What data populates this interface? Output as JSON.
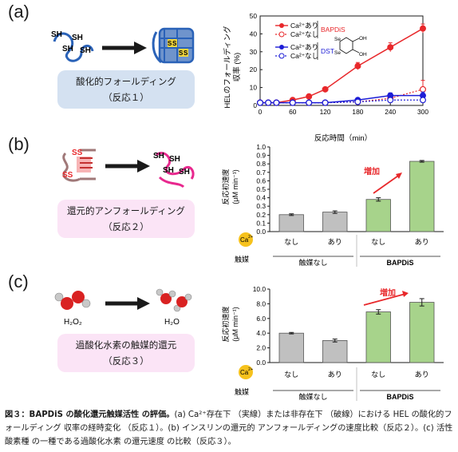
{
  "panels": {
    "a": {
      "label": "(a)",
      "reaction_title": "酸化的フォールディング",
      "reaction_sub": "（反応１）",
      "protein_thiols": [
        "SH",
        "SH",
        "SH",
        "SH"
      ],
      "protein_disulfides": [
        "S",
        "S",
        "S",
        "S"
      ],
      "ylabel_line1": "HELのフォールディング",
      "ylabel_line2": "収率 (%)",
      "xlabel": "反応時間（min）",
      "legend": {
        "series": [
          "Ca²⁺あり",
          "Ca²⁺なし",
          "Ca²⁺あり",
          "Ca²⁺なし"
        ],
        "groups": [
          "BAPDiS",
          "DST"
        ],
        "dst_struct_labels": [
          "Se",
          "Se",
          "OH",
          "OH"
        ]
      }
    },
    "b": {
      "label": "(b)",
      "reaction_title": "還元的アンフォールディング",
      "reaction_sub": "（反応２）",
      "protein_disulfides": [
        "SS",
        "SS"
      ],
      "protein_thiols": [
        "SH",
        "SH",
        "SH",
        "SH"
      ],
      "ylabel_line1": "反応初速度",
      "ylabel_line2": "(μM min⁻¹)",
      "annotation": "増加",
      "ca_label": "Ca",
      "ca_sup": "2+",
      "catalyst_label": "触媒",
      "ca_values": [
        "なし",
        "あり",
        "なし",
        "あり"
      ],
      "catalyst_groups": [
        "触媒なし",
        "BAPDiS"
      ]
    },
    "c": {
      "label": "(c)",
      "reactant": "H₂O₂",
      "product": "H₂O",
      "reaction_title": "過酸化水素の触媒的還元",
      "reaction_sub": "（反応３）",
      "ylabel_line1": "反応初速度",
      "ylabel_line2": "(μM min⁻¹)",
      "annotation": "増加",
      "ca_label": "Ca",
      "ca_sup": "2+",
      "catalyst_label": "触媒",
      "ca_values": [
        "なし",
        "あり",
        "なし",
        "あり"
      ],
      "catalyst_groups": [
        "触媒なし",
        "BAPDiS"
      ]
    }
  },
  "caption": {
    "lead": "図３：BAPDiS の酸化還元触媒活性 の評価。",
    "body": "(a) Ca²⁺存在下 （実線）または非存在下 （破線）における HEL の酸化的フォールディング 収率の経時変化 （反応１）。(b) インスリンの還元的 アンフォールディングの速度比較（反応２）。(c) 活性酸素種 の一種である過酸化水素 の還元速度 の比較（反応３）。"
  },
  "colors": {
    "bapdis": "#e8282b",
    "dst": "#1d1dd6",
    "bar_gray": "#c0c0c0",
    "bar_green": "#a7d38b",
    "box_blue": "#d4e1f1",
    "box_pink": "#fbe4f6",
    "ca_yellow": "#f6c21d",
    "arrow": "#e8282b"
  },
  "chart_data": [
    {
      "type": "line",
      "x": [
        0,
        15,
        30,
        60,
        90,
        120,
        180,
        240,
        300
      ],
      "xlim": [
        0,
        300
      ],
      "xticks": [
        0,
        60,
        120,
        180,
        240,
        300
      ],
      "ylim": [
        0,
        50
      ],
      "yticks": [
        0,
        10,
        20,
        30,
        40,
        50
      ],
      "xlabel": "反応時間（min）",
      "ylabel": "HELのフォールディング収率 (%)",
      "series": [
        {
          "name": "BAPDiS Ca²⁺あり",
          "style": "solid",
          "marker": "filled",
          "color": "#e8282b",
          "values": [
            1.5,
            1.5,
            1.5,
            3,
            5,
            9,
            22,
            32.5,
            43
          ],
          "errors": [
            0.5,
            0.5,
            0.5,
            0.6,
            0.8,
            1.0,
            2.0,
            2.5,
            2.5
          ]
        },
        {
          "name": "BAPDiS Ca²⁺なし",
          "style": "dashed",
          "marker": "open",
          "color": "#e8282b",
          "values": [
            1.5,
            1.5,
            1.5,
            1.5,
            1.5,
            1.5,
            2,
            4,
            9
          ],
          "errors": [
            0.4,
            0.4,
            0.4,
            0.4,
            0.4,
            0.5,
            1.0,
            2.0,
            5.0
          ]
        },
        {
          "name": "DST Ca²⁺あり",
          "style": "solid",
          "marker": "filled",
          "color": "#1d1dd6",
          "values": [
            1.5,
            1.5,
            1.5,
            1.5,
            1.5,
            1.5,
            3,
            5.5,
            5.5
          ],
          "errors": [
            0.4,
            0.4,
            0.4,
            0.4,
            0.4,
            0.5,
            1.0,
            1.5,
            2.0
          ]
        },
        {
          "name": "DST Ca²⁺なし",
          "style": "dashed",
          "marker": "open",
          "color": "#1d1dd6",
          "values": [
            1.5,
            1.5,
            1.5,
            1.5,
            1.5,
            1.5,
            2,
            3,
            3
          ],
          "errors": [
            0.3,
            0.3,
            0.3,
            0.3,
            0.3,
            0.4,
            0.8,
            1.0,
            1.0
          ]
        }
      ]
    },
    {
      "type": "bar",
      "categories": [
        "なし",
        "あり",
        "なし",
        "あり"
      ],
      "groups": [
        "触媒なし",
        "触媒なし",
        "BAPDiS",
        "BAPDiS"
      ],
      "values": [
        0.2,
        0.23,
        0.38,
        0.83
      ],
      "errors": [
        0.01,
        0.015,
        0.02,
        0.01
      ],
      "bar_colors": [
        "#c0c0c0",
        "#c0c0c0",
        "#a7d38b",
        "#a7d38b"
      ],
      "ylim": [
        0,
        1.0
      ],
      "yticks": [
        "0.0",
        "0.1",
        "0.2",
        "0.3",
        "0.4",
        "0.5",
        "0.6",
        "0.7",
        "0.8",
        "0.9",
        "1.0"
      ],
      "ylabel": "反応初速度 (μM min⁻¹)"
    },
    {
      "type": "bar",
      "categories": [
        "なし",
        "あり",
        "なし",
        "あり"
      ],
      "groups": [
        "触媒なし",
        "触媒なし",
        "BAPDiS",
        "BAPDiS"
      ],
      "values": [
        4.0,
        3.0,
        6.9,
        8.2
      ],
      "errors": [
        0.1,
        0.2,
        0.3,
        0.5
      ],
      "bar_colors": [
        "#c0c0c0",
        "#c0c0c0",
        "#a7d38b",
        "#a7d38b"
      ],
      "ylim": [
        0,
        10.0
      ],
      "yticks": [
        "0.0",
        "2.0",
        "4.0",
        "6.0",
        "8.0",
        "10.0"
      ],
      "ylabel": "反応初速度 (μM min⁻¹)"
    }
  ]
}
